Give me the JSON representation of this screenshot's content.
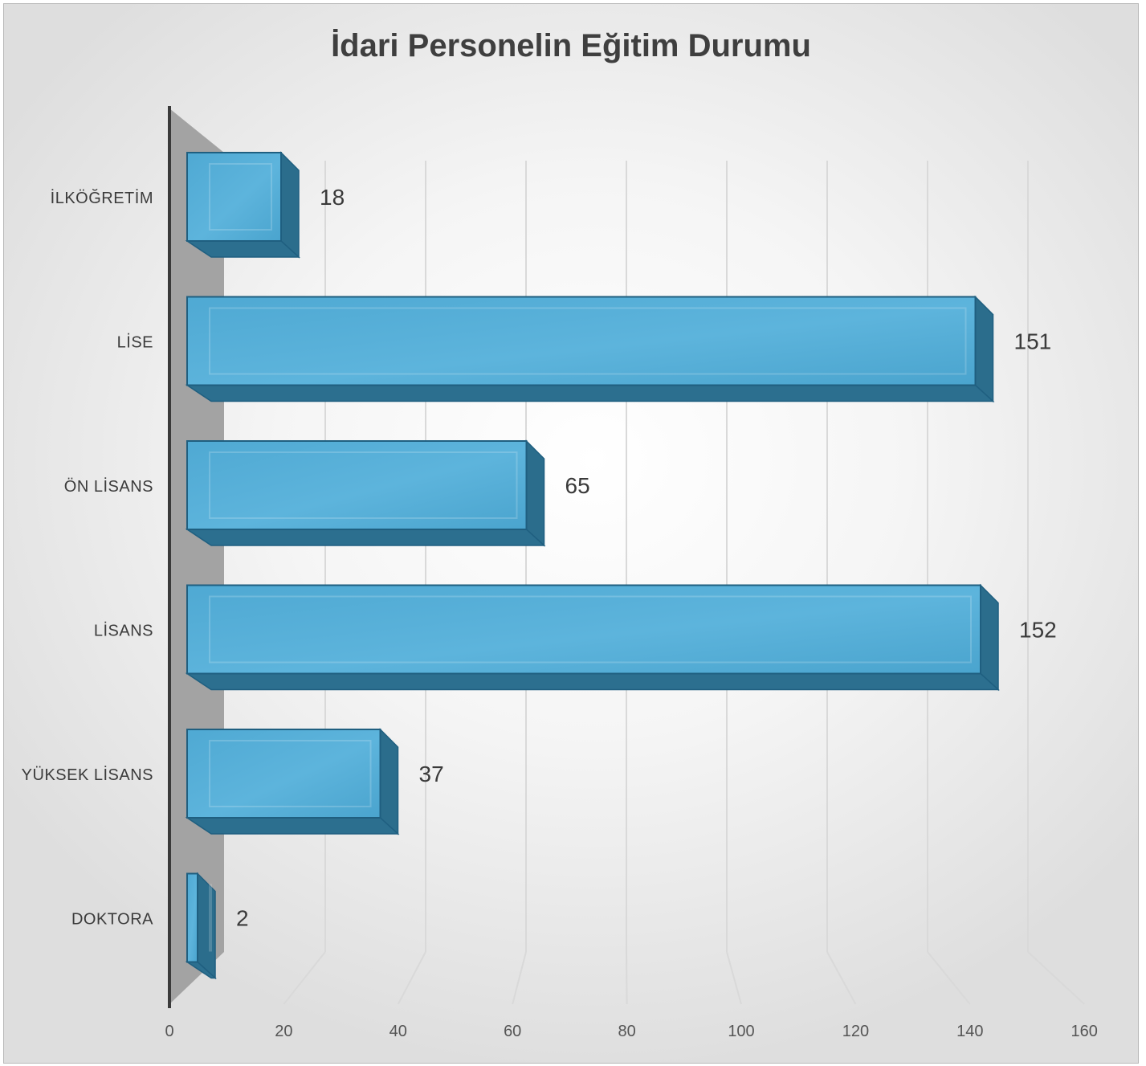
{
  "chart_data": {
    "type": "bar",
    "orientation": "horizontal",
    "style": "3d",
    "title": "İdari Personelin Eğitim Durumu",
    "categories": [
      "İLKÖĞRETİM",
      "LİSE",
      "ÖN LİSANS",
      "LİSANS",
      "YÜKSEK LİSANS",
      "DOKTORA"
    ],
    "values": [
      18,
      151,
      65,
      152,
      37,
      2
    ],
    "data_labels": [
      "18",
      "151",
      "65",
      "152",
      "37",
      "2"
    ],
    "xlim": [
      0,
      160
    ],
    "x_ticks": [
      "0",
      "20",
      "40",
      "60",
      "80",
      "100",
      "120",
      "140",
      "160"
    ],
    "x_tick_values": [
      0,
      20,
      40,
      60,
      80,
      100,
      120,
      140,
      160
    ],
    "grid": "vertical",
    "legend": "none",
    "colors": {
      "bar_front": "#4ca8d2",
      "bar_side": "#2b6d8c",
      "bar_edge": "#1f5f80",
      "back_wall_shadow": "#a3a3a3",
      "axis": "#3a3a3a",
      "gridline": "#d9d9d9"
    }
  }
}
